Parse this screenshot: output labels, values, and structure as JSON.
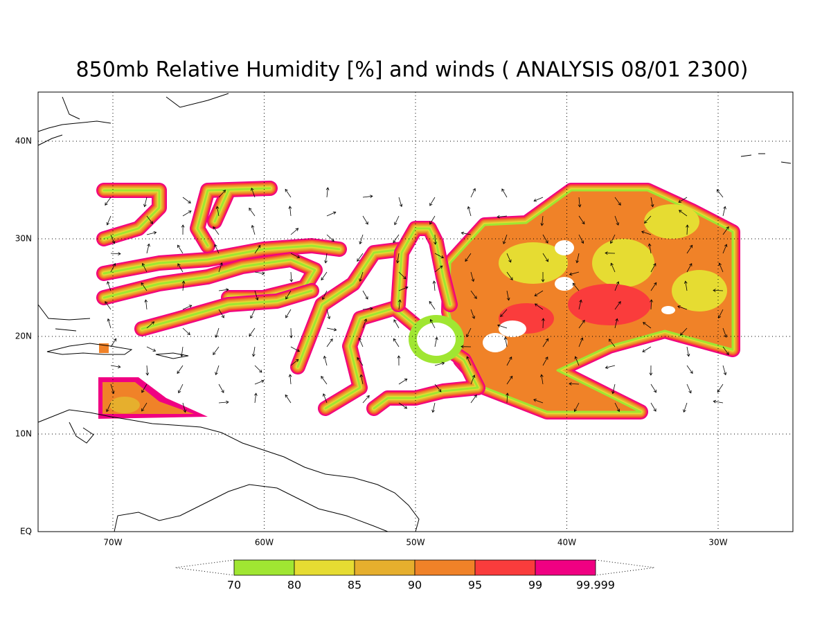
{
  "title": "850mb Relative Humidity [%] and winds ( ANALYSIS 08/01 2300)",
  "map": {
    "lat_labels": [
      "EQ",
      "10N",
      "20N",
      "30N",
      "40N"
    ],
    "lon_labels": [
      "70W",
      "60W",
      "50W",
      "40W",
      "30W"
    ]
  },
  "colorbar": {
    "levels": [
      70,
      80,
      85,
      90,
      95,
      99,
      99.999
    ],
    "colors": [
      "#a0e632",
      "#e6dc32",
      "#e6af2d",
      "#f08228",
      "#fa3c3c",
      "#f00082"
    ]
  }
}
